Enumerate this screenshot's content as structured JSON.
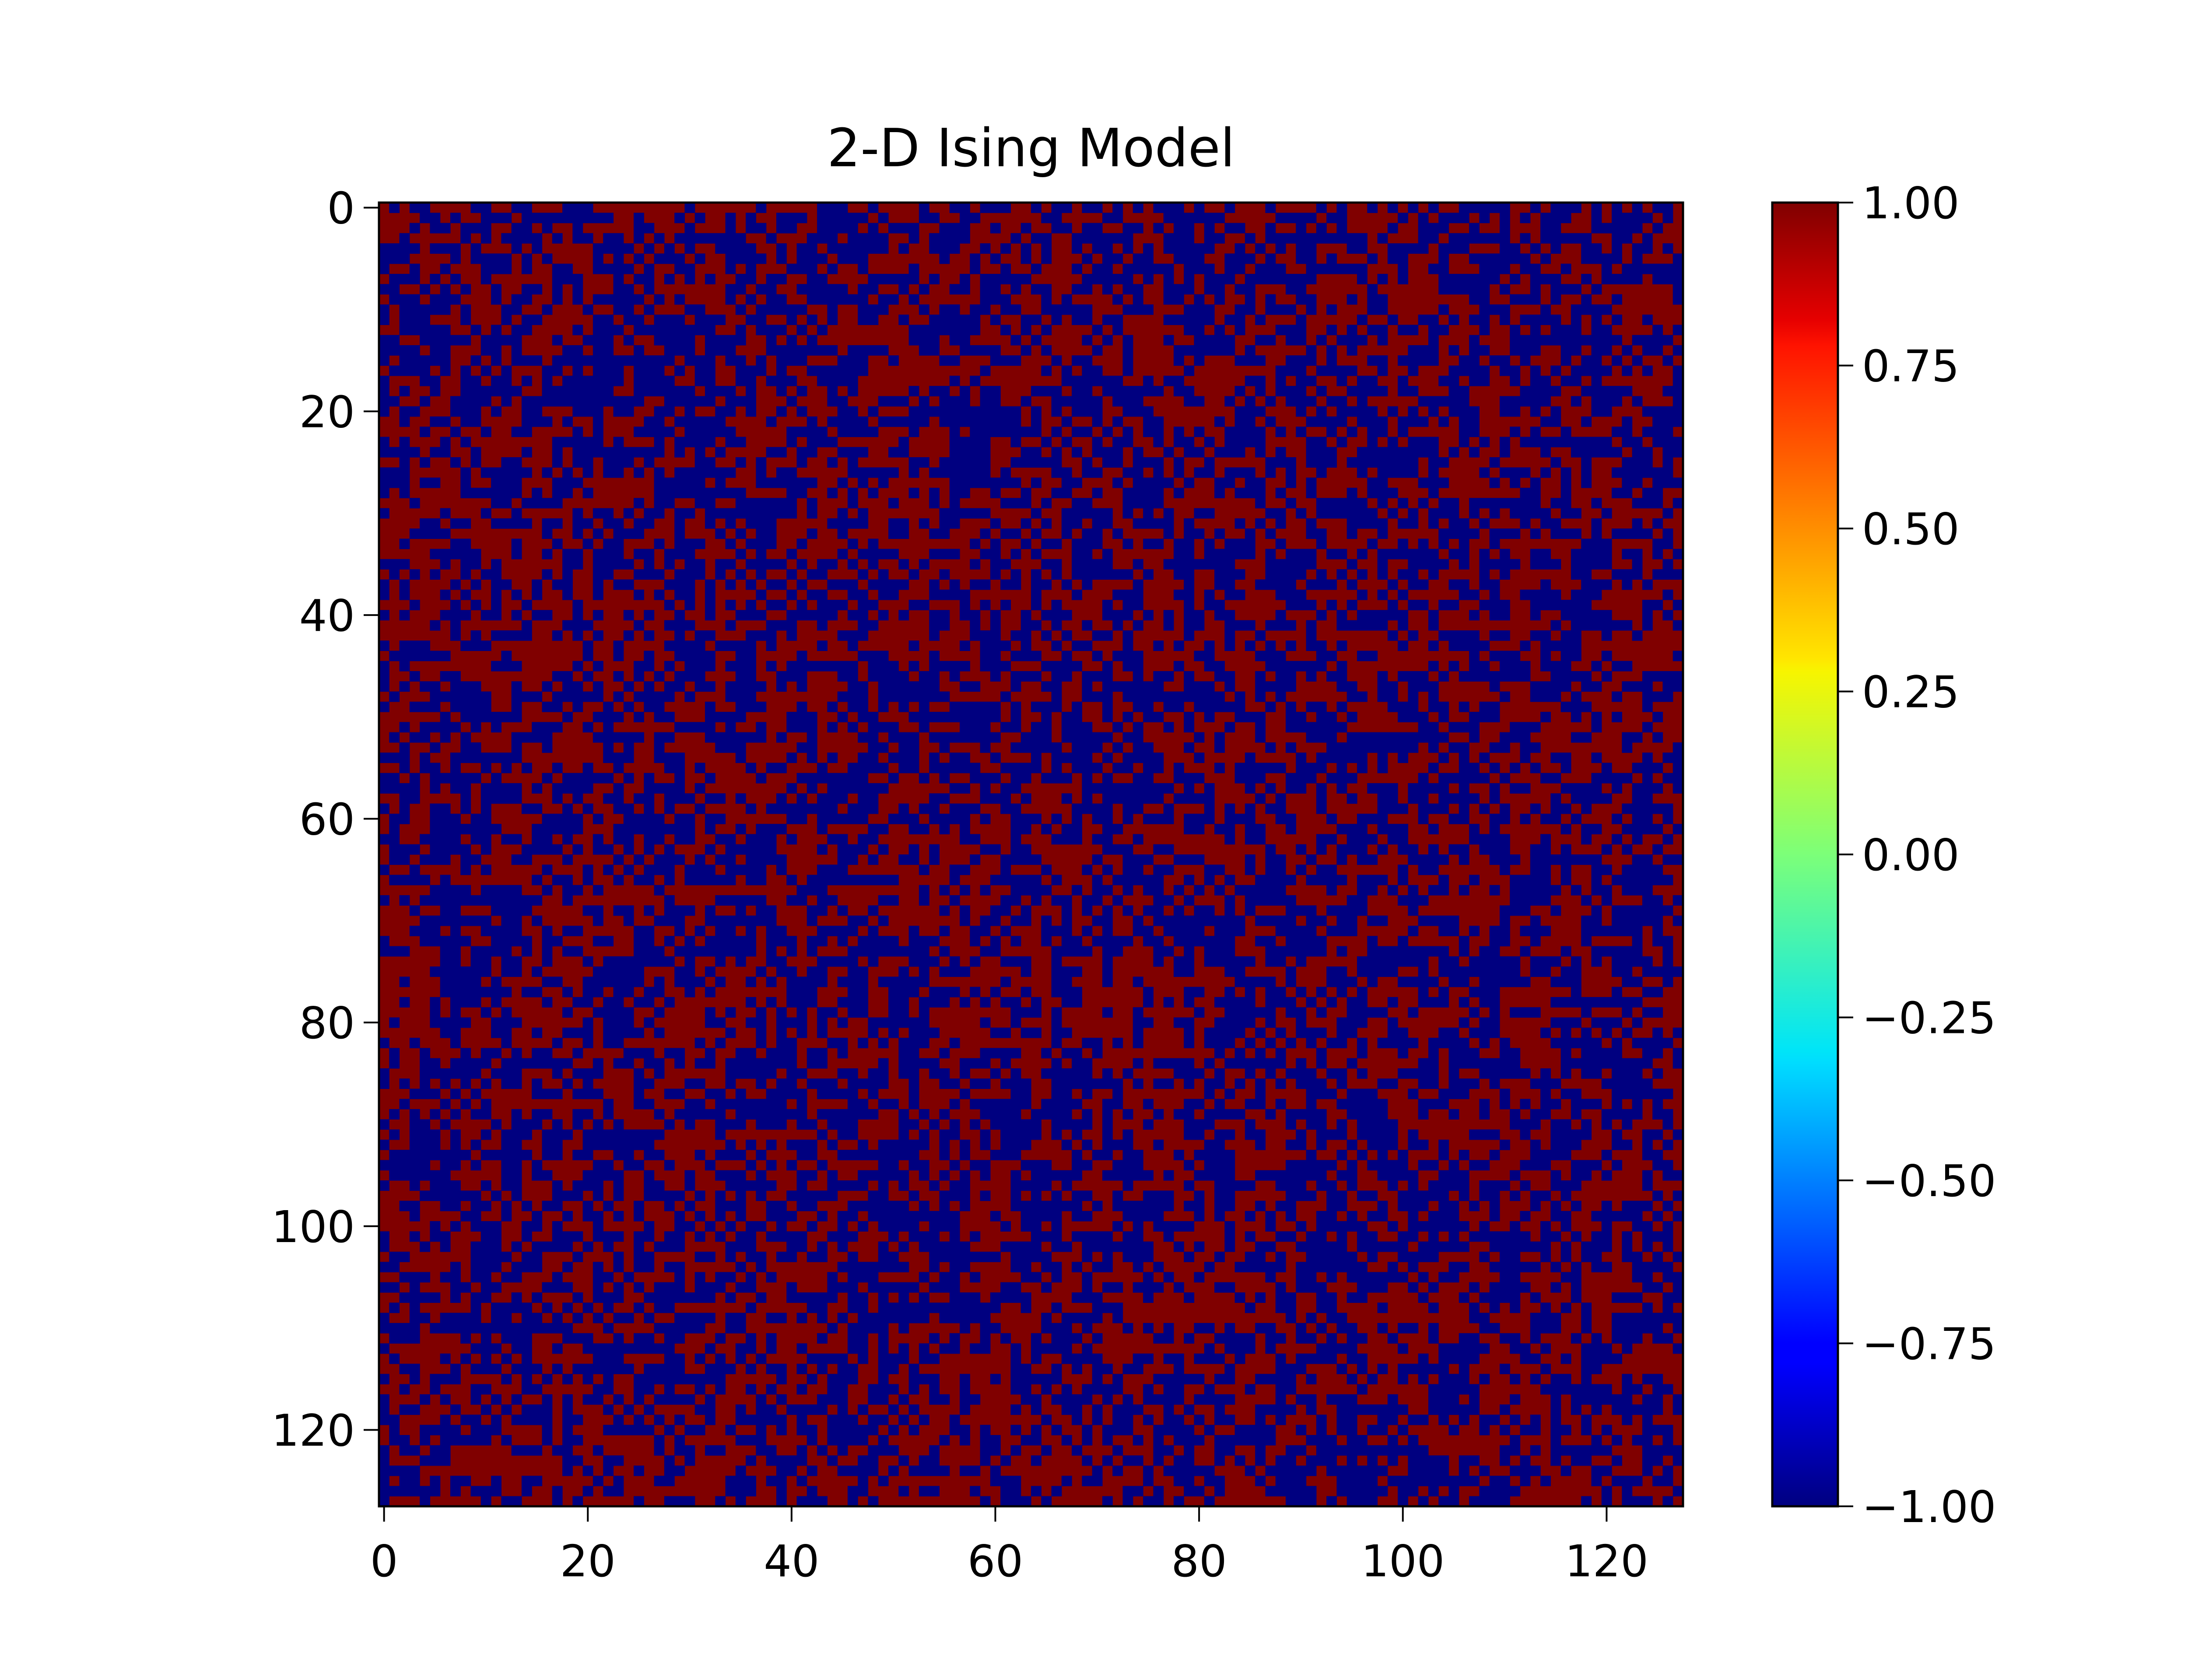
{
  "chart_data": {
    "type": "heatmap",
    "title": "2-D Ising Model",
    "xlabel": "",
    "ylabel": "",
    "grid": false,
    "lattice_rows": 128,
    "lattice_cols": 128,
    "cell_values": [
      -1,
      1
    ],
    "xlim": [
      -0.5,
      127.5
    ],
    "ylim": [
      127.5,
      -0.5
    ],
    "x_ticks": [
      0,
      20,
      40,
      60,
      80,
      100,
      120
    ],
    "x_tick_labels": [
      "0",
      "20",
      "40",
      "60",
      "80",
      "100",
      "120"
    ],
    "y_ticks": [
      0,
      20,
      40,
      60,
      80,
      100,
      120
    ],
    "y_tick_labels": [
      "0",
      "20",
      "40",
      "60",
      "80",
      "100",
      "120"
    ],
    "colormap": "jet",
    "colors": {
      "spin_up": "#800000",
      "spin_down": "#000080"
    },
    "colorbar": {
      "vmin": -1.0,
      "vmax": 1.0,
      "ticks": [
        1.0,
        0.75,
        0.5,
        0.25,
        0.0,
        -0.25,
        -0.5,
        -0.75,
        -1.0
      ],
      "tick_labels": [
        "1.00",
        "0.75",
        "0.50",
        "0.25",
        "0.00",
        "−0.25",
        "−0.50",
        "−0.75",
        "−1.00"
      ]
    }
  }
}
